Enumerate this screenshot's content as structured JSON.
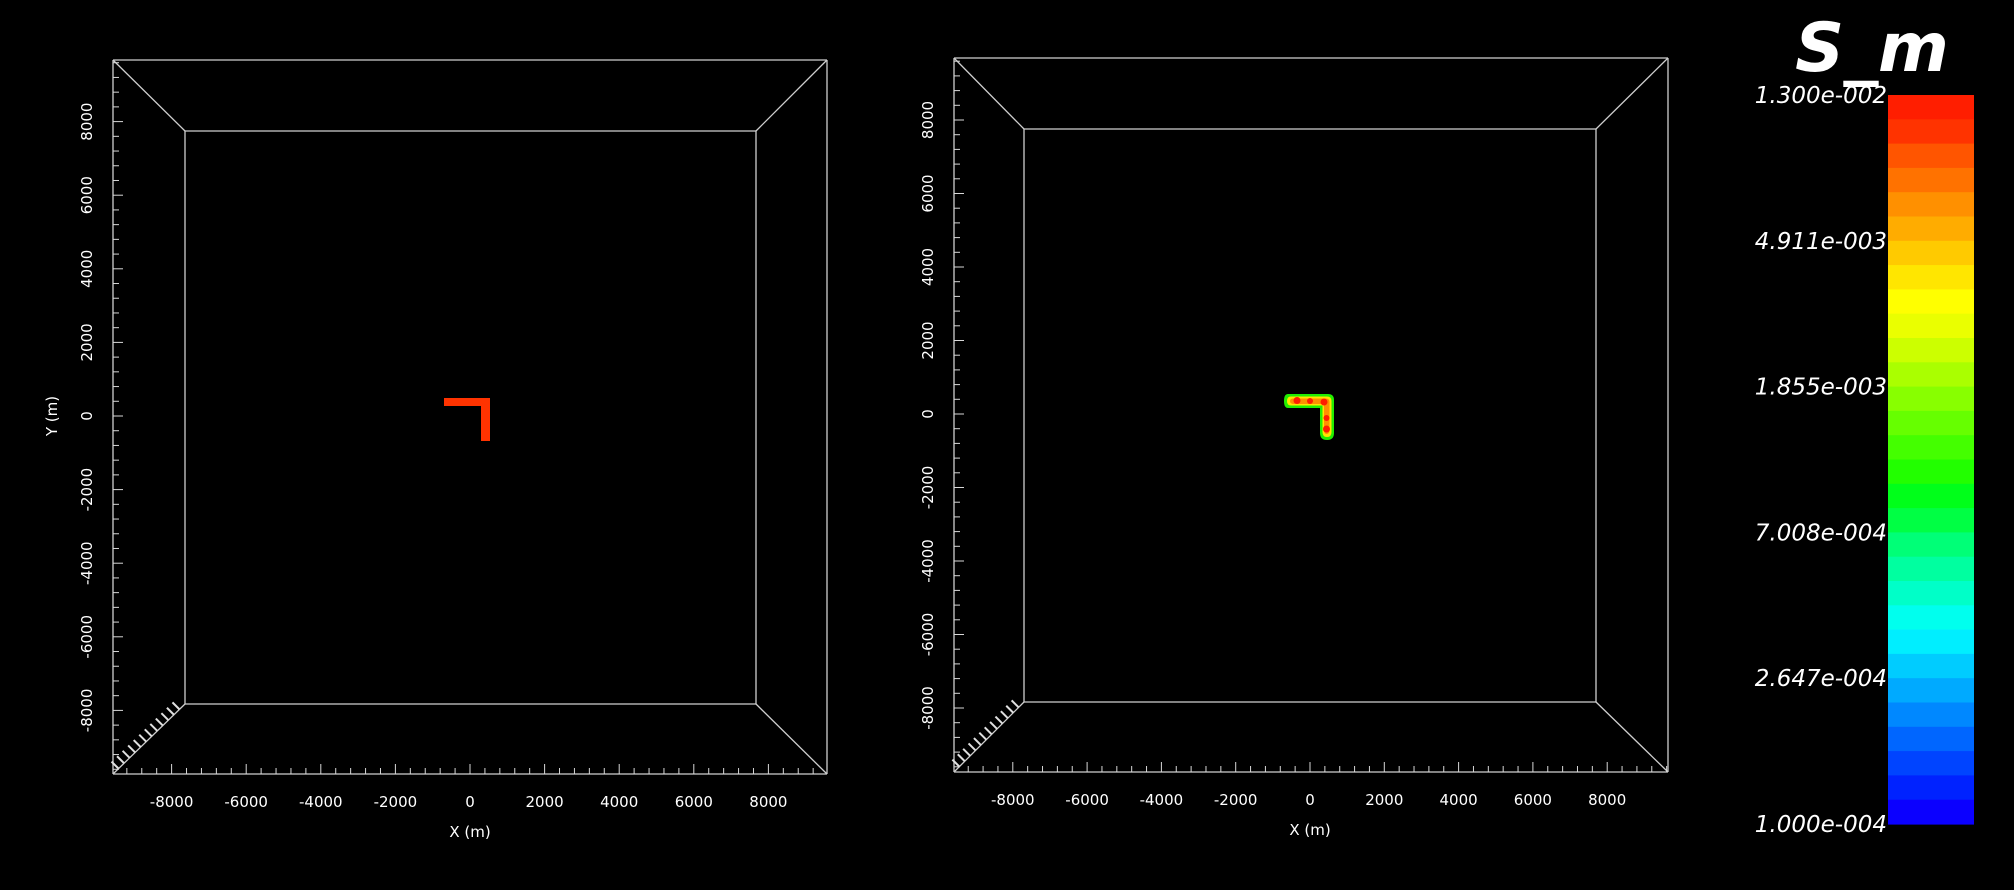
{
  "panels": [
    {
      "id": "left",
      "x_ticks": [
        "-8000",
        "-6000",
        "-4000",
        "-2000",
        "0",
        "2000",
        "4000",
        "6000",
        "8000"
      ],
      "y_ticks": [
        "8000",
        "6000",
        "4000",
        "2000",
        "0",
        "-2000",
        "-4000",
        "-6000",
        "-8000"
      ],
      "xlabel": "X (m)",
      "ylabel": "Y (m)",
      "feature": "L-shaped source region, uniform red"
    },
    {
      "id": "right",
      "x_ticks": [
        "-8000",
        "-6000",
        "-4000",
        "-2000",
        "0",
        "2000",
        "4000",
        "6000",
        "8000"
      ],
      "y_ticks": [
        "8000",
        "6000",
        "4000",
        "2000",
        "0",
        "-2000",
        "-4000",
        "-6000",
        "-8000"
      ],
      "xlabel": "X (m)",
      "ylabel": "",
      "feature": "L-shaped region, red core with yellow/green rim"
    }
  ],
  "colorbar": {
    "title": "S_m",
    "labels": [
      "1.300e-002",
      "4.911e-003",
      "1.855e-003",
      "7.008e-004",
      "2.647e-004",
      "1.000e-004"
    ],
    "colors": [
      "#ff1e00",
      "#ff3300",
      "#ff5500",
      "#ff7200",
      "#ff9000",
      "#ffac00",
      "#ffca00",
      "#ffe600",
      "#ffff00",
      "#eaff00",
      "#ccff00",
      "#aaff00",
      "#88ff00",
      "#66ff00",
      "#44ff00",
      "#22ff00",
      "#00ff1a",
      "#00ff44",
      "#00ff77",
      "#00ffa0",
      "#00ffc8",
      "#00ffee",
      "#00eeff",
      "#00ccff",
      "#00aaff",
      "#0088ff",
      "#0066ff",
      "#0044ff",
      "#0022ff",
      "#0b00ff"
    ]
  }
}
